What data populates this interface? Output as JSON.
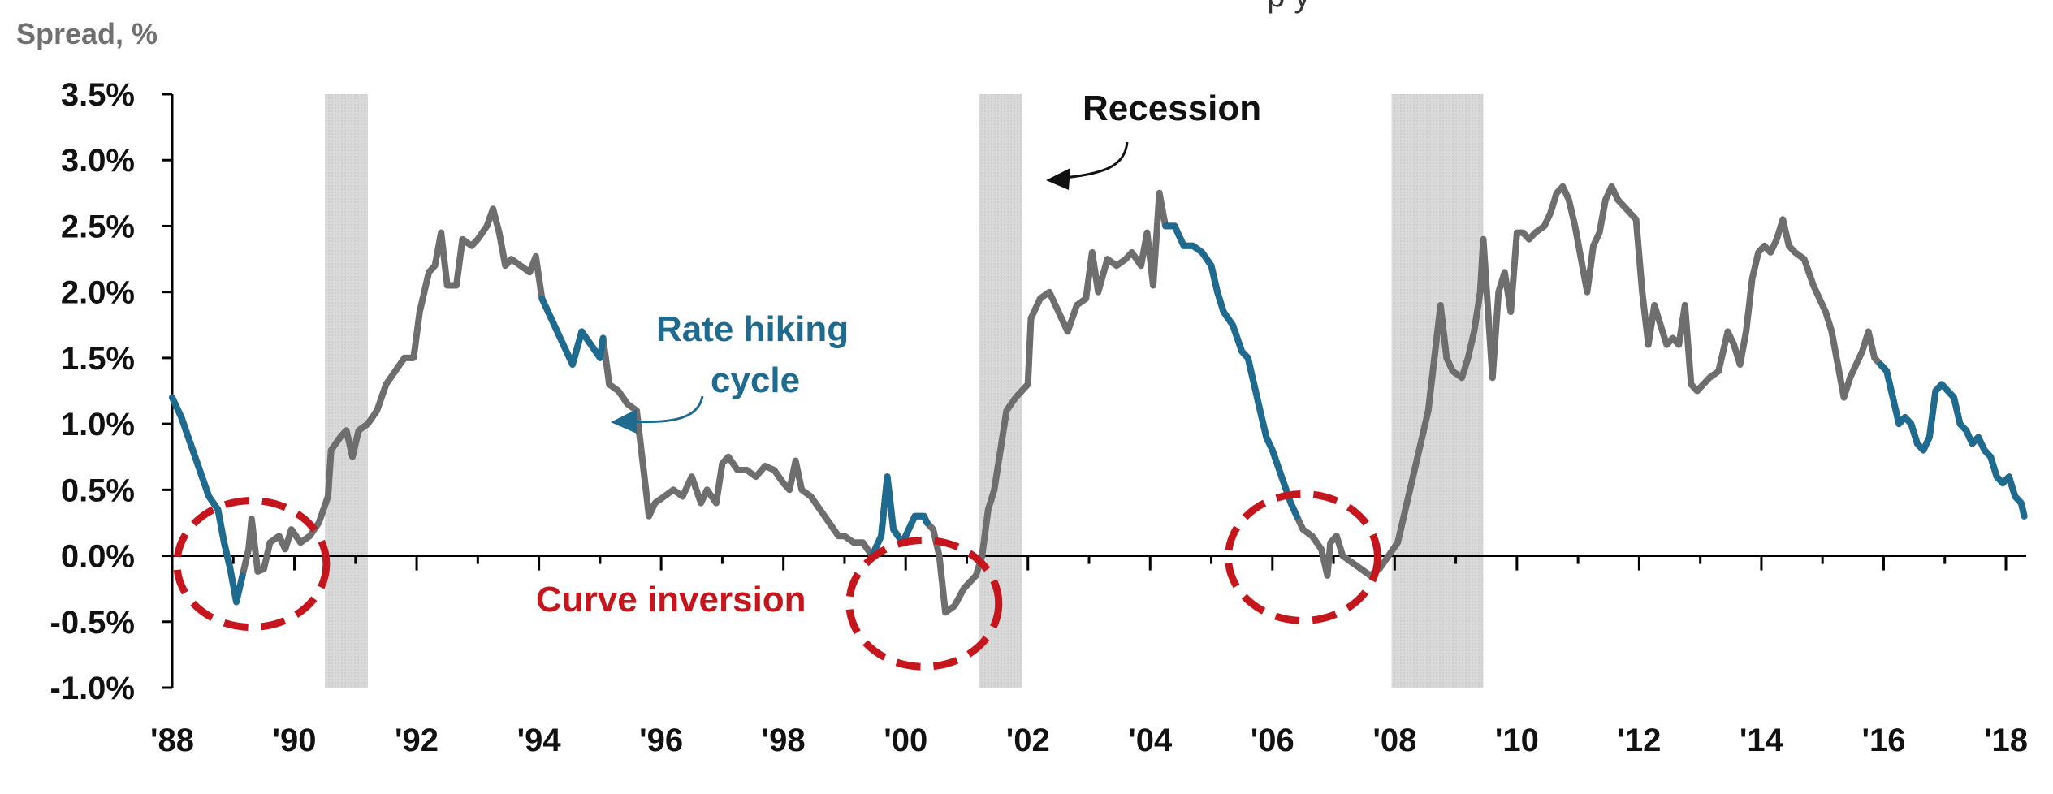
{
  "header_fragment": "p                   y",
  "chart_data": {
    "type": "line",
    "title": "",
    "ylabel": "Spread, %",
    "xlabel": "",
    "ylim": [
      -1.0,
      3.5
    ],
    "xlim": [
      1988,
      2018.3
    ],
    "grid": false,
    "y_ticks": [
      3.5,
      3.0,
      2.5,
      2.0,
      1.5,
      1.0,
      0.5,
      0.0,
      -0.5,
      -1.0
    ],
    "y_tick_labels": [
      "3.5%",
      "3.0%",
      "2.5%",
      "2.0%",
      "1.5%",
      "1.0%",
      "0.5%",
      "0.0%",
      "-0.5%",
      "-1.0%"
    ],
    "x_ticks": [
      1988,
      1990,
      1992,
      1994,
      1996,
      1998,
      2000,
      2002,
      2004,
      2006,
      2008,
      2010,
      2012,
      2014,
      2016,
      2018
    ],
    "x_tick_labels": [
      "'88",
      "'90",
      "'92",
      "'94",
      "'96",
      "'98",
      "'00",
      "'02",
      "'04",
      "'06",
      "'08",
      "'10",
      "'12",
      "'14",
      "'16",
      "'18"
    ],
    "recessions": [
      [
        1990.5,
        1991.2
      ],
      [
        2001.2,
        2001.9
      ],
      [
        2007.95,
        2009.45
      ]
    ],
    "hiking_cycles": [
      [
        1988.0,
        1989.2
      ],
      [
        1994.0,
        1995.1
      ],
      [
        1999.45,
        2000.4
      ],
      [
        2004.2,
        2006.4
      ],
      [
        2015.95,
        2018.3
      ]
    ],
    "inversion_markers": [
      [
        1989.3,
        0.0
      ],
      [
        2000.3,
        -0.3
      ],
      [
        2006.5,
        0.05
      ]
    ],
    "colors": {
      "line": "#6e6e6e",
      "hiking": "#1f6a8f",
      "recession": "#d6d6d6",
      "inversion": "#c4161c",
      "recession_label": "#111111"
    },
    "annotations": {
      "recession": "Recession",
      "rate_hiking_line1": "Rate hiking",
      "rate_hiking_line2": "cycle",
      "curve_inversion": "Curve inversion"
    },
    "series": [
      {
        "values": [
          [
            1988.0,
            1.2
          ],
          [
            1988.15,
            1.05
          ],
          [
            1988.3,
            0.85
          ],
          [
            1988.45,
            0.65
          ],
          [
            1988.6,
            0.45
          ],
          [
            1988.75,
            0.35
          ],
          [
            1988.85,
            0.1
          ],
          [
            1988.95,
            -0.1
          ],
          [
            1989.05,
            -0.35
          ],
          [
            1989.15,
            -0.15
          ],
          [
            1989.25,
            0.05
          ],
          [
            1989.3,
            0.28
          ],
          [
            1989.4,
            -0.12
          ],
          [
            1989.5,
            -0.1
          ],
          [
            1989.6,
            0.1
          ],
          [
            1989.75,
            0.15
          ],
          [
            1989.85,
            0.05
          ],
          [
            1989.95,
            0.2
          ],
          [
            1990.1,
            0.1
          ],
          [
            1990.25,
            0.15
          ],
          [
            1990.4,
            0.25
          ],
          [
            1990.55,
            0.45
          ],
          [
            1990.6,
            0.8
          ],
          [
            1990.75,
            0.9
          ],
          [
            1990.85,
            0.95
          ],
          [
            1990.95,
            0.75
          ],
          [
            1991.05,
            0.95
          ],
          [
            1991.2,
            1.0
          ],
          [
            1991.35,
            1.1
          ],
          [
            1991.5,
            1.3
          ],
          [
            1991.65,
            1.4
          ],
          [
            1991.8,
            1.5
          ],
          [
            1991.95,
            1.5
          ],
          [
            1992.05,
            1.85
          ],
          [
            1992.2,
            2.15
          ],
          [
            1992.3,
            2.2
          ],
          [
            1992.4,
            2.45
          ],
          [
            1992.5,
            2.05
          ],
          [
            1992.65,
            2.05
          ],
          [
            1992.75,
            2.4
          ],
          [
            1992.9,
            2.35
          ],
          [
            1993.0,
            2.4
          ],
          [
            1993.15,
            2.5
          ],
          [
            1993.25,
            2.63
          ],
          [
            1993.35,
            2.45
          ],
          [
            1993.45,
            2.2
          ],
          [
            1993.55,
            2.25
          ],
          [
            1993.7,
            2.2
          ],
          [
            1993.85,
            2.15
          ],
          [
            1993.95,
            2.27
          ],
          [
            1994.05,
            1.95
          ],
          [
            1994.2,
            1.8
          ],
          [
            1994.35,
            1.65
          ],
          [
            1994.45,
            1.55
          ],
          [
            1994.55,
            1.45
          ],
          [
            1994.7,
            1.7
          ],
          [
            1994.85,
            1.6
          ],
          [
            1995.0,
            1.5
          ],
          [
            1995.05,
            1.65
          ],
          [
            1995.15,
            1.3
          ],
          [
            1995.3,
            1.25
          ],
          [
            1995.45,
            1.15
          ],
          [
            1995.6,
            1.1
          ],
          [
            1995.7,
            0.7
          ],
          [
            1995.8,
            0.3
          ],
          [
            1995.9,
            0.4
          ],
          [
            1996.05,
            0.45
          ],
          [
            1996.2,
            0.5
          ],
          [
            1996.35,
            0.45
          ],
          [
            1996.5,
            0.6
          ],
          [
            1996.65,
            0.4
          ],
          [
            1996.75,
            0.5
          ],
          [
            1996.9,
            0.4
          ],
          [
            1997.0,
            0.7
          ],
          [
            1997.1,
            0.75
          ],
          [
            1997.25,
            0.65
          ],
          [
            1997.4,
            0.65
          ],
          [
            1997.55,
            0.6
          ],
          [
            1997.7,
            0.68
          ],
          [
            1997.85,
            0.65
          ],
          [
            1998.0,
            0.55
          ],
          [
            1998.1,
            0.5
          ],
          [
            1998.2,
            0.72
          ],
          [
            1998.3,
            0.5
          ],
          [
            1998.45,
            0.45
          ],
          [
            1998.6,
            0.35
          ],
          [
            1998.75,
            0.25
          ],
          [
            1998.9,
            0.15
          ],
          [
            1999.0,
            0.15
          ],
          [
            1999.15,
            0.1
          ],
          [
            1999.3,
            0.1
          ],
          [
            1999.45,
            0.0
          ],
          [
            1999.6,
            0.15
          ],
          [
            1999.7,
            0.6
          ],
          [
            1999.8,
            0.2
          ],
          [
            1999.95,
            0.1
          ],
          [
            2000.05,
            0.2
          ],
          [
            2000.15,
            0.3
          ],
          [
            2000.3,
            0.3
          ],
          [
            2000.35,
            0.25
          ],
          [
            2000.45,
            0.2
          ],
          [
            2000.55,
            0.0
          ],
          [
            2000.65,
            -0.43
          ],
          [
            2000.8,
            -0.38
          ],
          [
            2000.95,
            -0.25
          ],
          [
            2001.05,
            -0.2
          ],
          [
            2001.15,
            -0.15
          ],
          [
            2001.25,
            0.0
          ],
          [
            2001.35,
            0.35
          ],
          [
            2001.45,
            0.5
          ],
          [
            2001.55,
            0.8
          ],
          [
            2001.65,
            1.1
          ],
          [
            2001.8,
            1.2
          ],
          [
            2001.9,
            1.25
          ],
          [
            2002.0,
            1.3
          ],
          [
            2002.05,
            1.8
          ],
          [
            2002.2,
            1.95
          ],
          [
            2002.35,
            2.0
          ],
          [
            2002.5,
            1.85
          ],
          [
            2002.65,
            1.7
          ],
          [
            2002.8,
            1.9
          ],
          [
            2002.95,
            1.95
          ],
          [
            2003.05,
            2.3
          ],
          [
            2003.15,
            2.0
          ],
          [
            2003.3,
            2.25
          ],
          [
            2003.45,
            2.2
          ],
          [
            2003.6,
            2.25
          ],
          [
            2003.7,
            2.3
          ],
          [
            2003.85,
            2.2
          ],
          [
            2003.95,
            2.45
          ],
          [
            2004.05,
            2.05
          ],
          [
            2004.15,
            2.75
          ],
          [
            2004.25,
            2.5
          ],
          [
            2004.4,
            2.5
          ],
          [
            2004.55,
            2.35
          ],
          [
            2004.7,
            2.35
          ],
          [
            2004.85,
            2.3
          ],
          [
            2005.0,
            2.2
          ],
          [
            2005.1,
            2.0
          ],
          [
            2005.2,
            1.85
          ],
          [
            2005.35,
            1.75
          ],
          [
            2005.5,
            1.55
          ],
          [
            2005.6,
            1.5
          ],
          [
            2005.7,
            1.3
          ],
          [
            2005.8,
            1.1
          ],
          [
            2005.9,
            0.9
          ],
          [
            2006.0,
            0.8
          ],
          [
            2006.15,
            0.6
          ],
          [
            2006.3,
            0.4
          ],
          [
            2006.4,
            0.3
          ],
          [
            2006.5,
            0.2
          ],
          [
            2006.65,
            0.15
          ],
          [
            2006.8,
            0.05
          ],
          [
            2006.9,
            -0.15
          ],
          [
            2006.95,
            0.1
          ],
          [
            2007.05,
            0.15
          ],
          [
            2007.15,
            0.0
          ],
          [
            2007.3,
            -0.05
          ],
          [
            2007.45,
            -0.1
          ],
          [
            2007.6,
            -0.15
          ],
          [
            2007.75,
            -0.1
          ],
          [
            2007.9,
            0.0
          ],
          [
            2008.05,
            0.1
          ],
          [
            2008.2,
            0.4
          ],
          [
            2008.3,
            0.6
          ],
          [
            2008.45,
            0.9
          ],
          [
            2008.55,
            1.1
          ],
          [
            2008.65,
            1.5
          ],
          [
            2008.75,
            1.9
          ],
          [
            2008.85,
            1.5
          ],
          [
            2008.95,
            1.4
          ],
          [
            2009.1,
            1.35
          ],
          [
            2009.2,
            1.5
          ],
          [
            2009.3,
            1.7
          ],
          [
            2009.4,
            2.0
          ],
          [
            2009.45,
            2.4
          ],
          [
            2009.55,
            1.7
          ],
          [
            2009.6,
            1.35
          ],
          [
            2009.7,
            2.0
          ],
          [
            2009.8,
            2.15
          ],
          [
            2009.9,
            1.85
          ],
          [
            2010.0,
            2.45
          ],
          [
            2010.1,
            2.45
          ],
          [
            2010.2,
            2.4
          ],
          [
            2010.3,
            2.45
          ],
          [
            2010.45,
            2.5
          ],
          [
            2010.55,
            2.6
          ],
          [
            2010.65,
            2.75
          ],
          [
            2010.75,
            2.8
          ],
          [
            2010.85,
            2.7
          ],
          [
            2010.95,
            2.5
          ],
          [
            2011.05,
            2.25
          ],
          [
            2011.15,
            2.0
          ],
          [
            2011.25,
            2.35
          ],
          [
            2011.35,
            2.45
          ],
          [
            2011.45,
            2.7
          ],
          [
            2011.55,
            2.8
          ],
          [
            2011.65,
            2.7
          ],
          [
            2011.75,
            2.65
          ],
          [
            2011.85,
            2.6
          ],
          [
            2011.95,
            2.55
          ],
          [
            2012.05,
            2.0
          ],
          [
            2012.15,
            1.6
          ],
          [
            2012.25,
            1.9
          ],
          [
            2012.35,
            1.75
          ],
          [
            2012.45,
            1.6
          ],
          [
            2012.55,
            1.65
          ],
          [
            2012.65,
            1.6
          ],
          [
            2012.75,
            1.9
          ],
          [
            2012.85,
            1.3
          ],
          [
            2012.95,
            1.25
          ],
          [
            2013.05,
            1.3
          ],
          [
            2013.15,
            1.35
          ],
          [
            2013.3,
            1.4
          ],
          [
            2013.45,
            1.7
          ],
          [
            2013.55,
            1.6
          ],
          [
            2013.65,
            1.45
          ],
          [
            2013.75,
            1.7
          ],
          [
            2013.85,
            2.1
          ],
          [
            2013.95,
            2.3
          ],
          [
            2014.05,
            2.35
          ],
          [
            2014.15,
            2.3
          ],
          [
            2014.25,
            2.4
          ],
          [
            2014.35,
            2.55
          ],
          [
            2014.45,
            2.35
          ],
          [
            2014.55,
            2.3
          ],
          [
            2014.7,
            2.25
          ],
          [
            2014.85,
            2.05
          ],
          [
            2014.95,
            1.95
          ],
          [
            2015.05,
            1.85
          ],
          [
            2015.15,
            1.7
          ],
          [
            2015.25,
            1.45
          ],
          [
            2015.35,
            1.2
          ],
          [
            2015.45,
            1.35
          ],
          [
            2015.55,
            1.45
          ],
          [
            2015.65,
            1.55
          ],
          [
            2015.75,
            1.7
          ],
          [
            2015.85,
            1.5
          ],
          [
            2015.95,
            1.45
          ],
          [
            2016.05,
            1.4
          ],
          [
            2016.15,
            1.2
          ],
          [
            2016.25,
            1.0
          ],
          [
            2016.35,
            1.05
          ],
          [
            2016.45,
            1.0
          ],
          [
            2016.55,
            0.85
          ],
          [
            2016.65,
            0.8
          ],
          [
            2016.75,
            0.9
          ],
          [
            2016.85,
            1.25
          ],
          [
            2016.95,
            1.3
          ],
          [
            2017.05,
            1.25
          ],
          [
            2017.15,
            1.2
          ],
          [
            2017.25,
            1.0
          ],
          [
            2017.35,
            0.95
          ],
          [
            2017.45,
            0.85
          ],
          [
            2017.55,
            0.9
          ],
          [
            2017.65,
            0.8
          ],
          [
            2017.75,
            0.75
          ],
          [
            2017.85,
            0.6
          ],
          [
            2017.95,
            0.55
          ],
          [
            2018.05,
            0.6
          ],
          [
            2018.15,
            0.45
          ],
          [
            2018.25,
            0.4
          ],
          [
            2018.3,
            0.3
          ]
        ]
      }
    ]
  }
}
